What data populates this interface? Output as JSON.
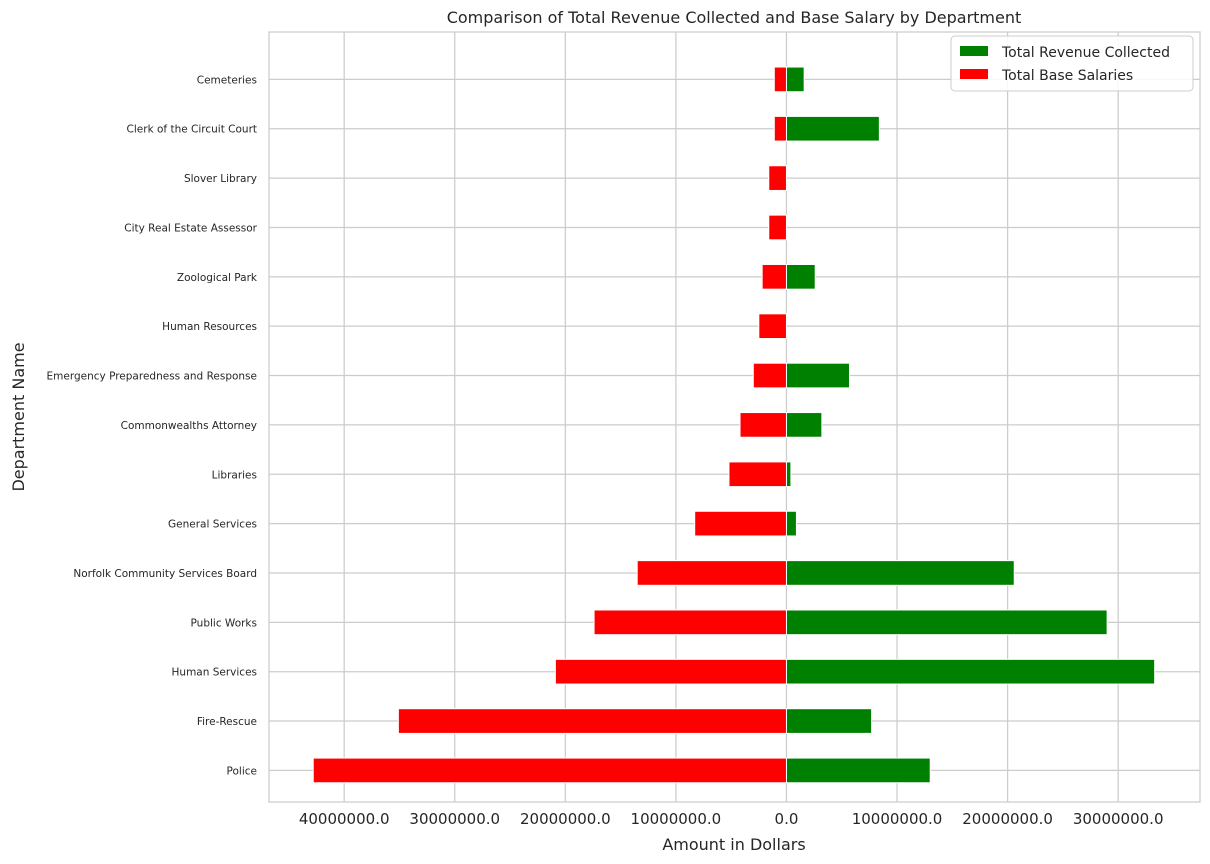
{
  "chart_data": {
    "type": "bar",
    "orientation": "horizontal-diverging",
    "title": "Comparison of Total Revenue Collected and Base Salary by Department",
    "xlabel": "Amount in Dollars",
    "ylabel": "Department Name",
    "xlim": [
      -46800000,
      37400000
    ],
    "grid": true,
    "legend_position": "top-right",
    "x_ticks": [
      {
        "value": -40000000,
        "label": "40000000.0"
      },
      {
        "value": -30000000,
        "label": "30000000.0"
      },
      {
        "value": -20000000,
        "label": "20000000.0"
      },
      {
        "value": -10000000,
        "label": "10000000.0"
      },
      {
        "value": 0,
        "label": "0.0"
      },
      {
        "value": 10000000,
        "label": "10000000.0"
      },
      {
        "value": 20000000,
        "label": "20000000.0"
      },
      {
        "value": 30000000,
        "label": "30000000.0"
      }
    ],
    "categories": [
      "Cemeteries",
      "Clerk of the Circuit Court",
      "Slover Library",
      "City Real Estate Assessor",
      "Zoological Park",
      "Human Resources",
      "Emergency Preparedness and Response",
      "Commonwealths Attorney",
      "Libraries",
      "General Services",
      "Norfolk Community Services Board",
      "Public Works",
      "Human Services",
      "Fire-Rescue",
      "Police"
    ],
    "series": [
      {
        "name": "Total Revenue Collected",
        "color": "#008000",
        "values": [
          1600000,
          8400000,
          0,
          0,
          2600000,
          0,
          5700000,
          3200000,
          400000,
          900000,
          20600000,
          29000000,
          33300000,
          7700000,
          13000000
        ]
      },
      {
        "name": "Total Base Salaries",
        "color": "#ff0000",
        "values": [
          1100000,
          1100000,
          1600000,
          1600000,
          2200000,
          2500000,
          3000000,
          4200000,
          5200000,
          8300000,
          13500000,
          17400000,
          20900000,
          35100000,
          42800000
        ]
      }
    ]
  }
}
